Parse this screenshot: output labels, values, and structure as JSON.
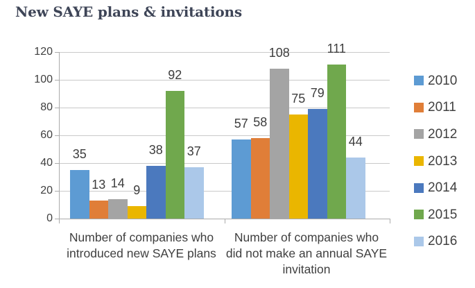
{
  "title": "New SAYE plans & invitations",
  "chart_data": {
    "type": "bar",
    "title": "New SAYE plans & invitations",
    "categories": [
      "Number of companies who introduced new SAYE plans",
      "Number of companies who did not make an annual SAYE invitation"
    ],
    "series": [
      {
        "name": "2010",
        "color": "#5D9BD3",
        "values": [
          35,
          57
        ]
      },
      {
        "name": "2011",
        "color": "#E07E38",
        "values": [
          13,
          58
        ]
      },
      {
        "name": "2012",
        "color": "#A4A4A4",
        "values": [
          14,
          108
        ]
      },
      {
        "name": "2013",
        "color": "#EAB600",
        "values": [
          9,
          75
        ]
      },
      {
        "name": "2014",
        "color": "#4B79BE",
        "values": [
          38,
          79
        ]
      },
      {
        "name": "2015",
        "color": "#70A84D",
        "values": [
          92,
          111
        ]
      },
      {
        "name": "2016",
        "color": "#ABC8E9",
        "values": [
          37,
          44
        ]
      }
    ],
    "xlabel": "",
    "ylabel": "",
    "ylim": [
      0,
      120
    ],
    "yticks": [
      0,
      20,
      40,
      60,
      80,
      100,
      120
    ],
    "grid": true,
    "data_labels": true,
    "legend_position": "right"
  },
  "xaxis": {
    "labels_display": [
      "Number of companies who\nintroduced new SAYE plans",
      "Number of companies who\ndid not make an annual SAYE\ninvitation"
    ]
  },
  "colors": {
    "title_text": "#3E4557",
    "axis_text": "#3F3F3F",
    "data_label_text": "#3D3D3D",
    "legend_text": "#404040",
    "gridline": "#C9C9C9",
    "axis_line": "#ABABAB",
    "background": "#FFFFFF"
  }
}
